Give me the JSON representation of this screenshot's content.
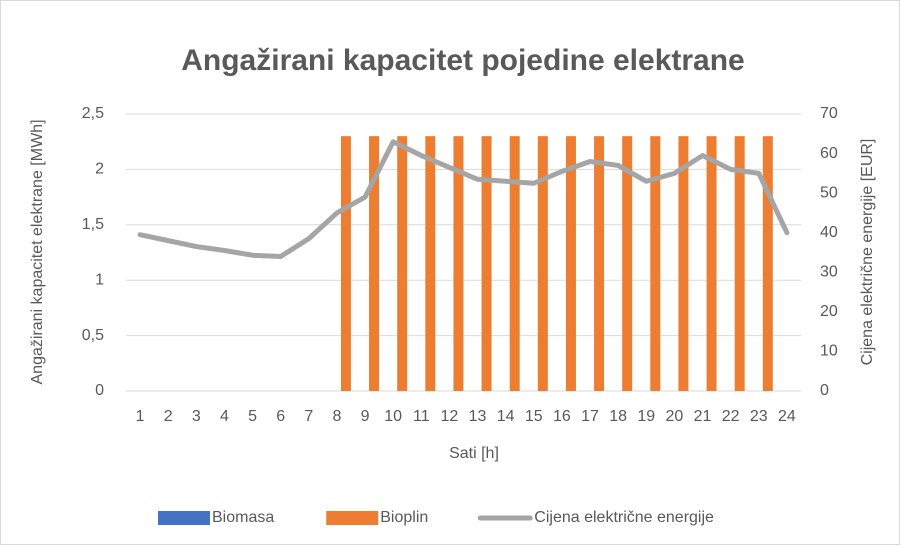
{
  "chart_data": {
    "type": "bar_line",
    "title": "Angažirani kapacitet pojedine elektrane",
    "xlabel": "Sati [h]",
    "ylabel": "Angažirani kapacitet elektrane [MWh]",
    "y2label": "Cijena električne energije [EUR]",
    "categories": [
      "1",
      "2",
      "3",
      "4",
      "5",
      "6",
      "7",
      "8",
      "9",
      "10",
      "11",
      "12",
      "13",
      "14",
      "15",
      "16",
      "17",
      "18",
      "19",
      "20",
      "21",
      "22",
      "23",
      "24"
    ],
    "series": [
      {
        "name": "Biomasa",
        "type": "bar",
        "color": "#4472c4",
        "values": [
          0,
          0,
          0,
          0,
          0,
          0,
          0,
          0,
          0,
          0,
          0,
          0,
          0,
          0,
          0,
          0,
          0,
          0,
          0,
          0,
          0,
          0,
          0,
          0
        ]
      },
      {
        "name": "Bioplin",
        "type": "bar",
        "color": "#ed7d31",
        "values": [
          0,
          0,
          0,
          0,
          0,
          0,
          0,
          2.3,
          2.3,
          2.3,
          2.3,
          2.3,
          2.3,
          2.3,
          2.3,
          2.3,
          2.3,
          2.3,
          2.3,
          2.3,
          2.3,
          2.3,
          2.3,
          0
        ]
      },
      {
        "name": "Cijena električne energije",
        "type": "line",
        "axis": "y2",
        "color": "#a5a5a5",
        "values": [
          39.5,
          38,
          36.5,
          35.5,
          34.3,
          34,
          38.5,
          45,
          49,
          63,
          59.5,
          56.5,
          53.5,
          53,
          52.5,
          55.5,
          58,
          57,
          53,
          55,
          59.5,
          56,
          55,
          40
        ]
      }
    ],
    "ylim": [
      0,
      2.5
    ],
    "yticks": [
      0,
      {
        "value": 0.5,
        "label": "0,5"
      },
      1,
      {
        "value": 1.5,
        "label": "1,5"
      },
      2,
      {
        "value": 2.5,
        "label": "2,5"
      }
    ],
    "y2lim": [
      0,
      70
    ],
    "y2ticks": [
      0,
      10,
      20,
      30,
      40,
      50,
      60,
      70
    ],
    "grid": true,
    "legend": "bottom"
  }
}
